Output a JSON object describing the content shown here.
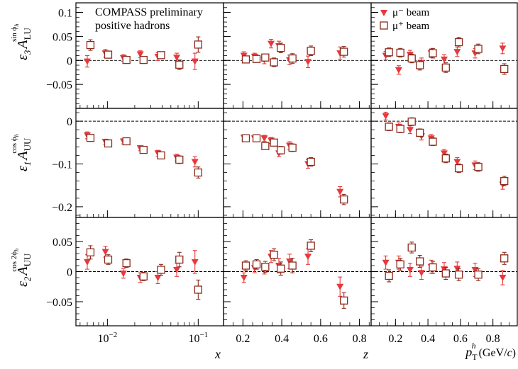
{
  "annotation": {
    "line1": "COMPASS preliminary",
    "line2": "positive hadrons"
  },
  "legend": [
    {
      "label": "μ⁻ beam",
      "color": "#e8383d",
      "marker": "filled-triangle-down"
    },
    {
      "label": "μ⁺ beam",
      "color": "#8b2c1d",
      "marker": "open-square"
    }
  ],
  "row_labels": [
    {
      "symbol": "ε",
      "sub": "3",
      "main": "A",
      "main_sub": "LU",
      "sup": "sin ϕ",
      "sup_sub": "h"
    },
    {
      "symbol": "ε",
      "sub": "1",
      "main": "A",
      "main_sub": "UU",
      "sup": "cos ϕ",
      "sup_sub": "h"
    },
    {
      "symbol": "ε",
      "sub": "2",
      "main": "A",
      "main_sub": "UU",
      "sup": "cos 2ϕ",
      "sup_sub": "h"
    }
  ],
  "column_titles": [
    {
      "text": "x"
    },
    {
      "text": "z"
    },
    {
      "main": "p",
      "sub": "T",
      "sup": "h",
      "unit": " (GeV/",
      "unit_var": "c",
      "unit_end": ")"
    }
  ],
  "chart_data": {
    "type": "scatter",
    "layout": "3x3 panel grid, shared y-axis per row, shared x-axis per column",
    "columns": [
      {
        "variable": "x",
        "scale": "log",
        "xlim": [
          0.0045,
          0.19
        ],
        "ticks": [
          {
            "value": 0.01,
            "base": "10",
            "exp": "−2"
          },
          {
            "value": 0.1,
            "base": "10",
            "exp": "−1"
          }
        ]
      },
      {
        "variable": "z",
        "scale": "linear",
        "xlim": [
          0.1,
          0.86
        ],
        "ticks": [
          {
            "value": 0.2,
            "label": "0.2"
          },
          {
            "value": 0.4,
            "label": "0.4"
          },
          {
            "value": 0.6,
            "label": "0.6"
          },
          {
            "value": 0.8,
            "label": "0.8"
          }
        ]
      },
      {
        "variable": "pT",
        "scale": "linear",
        "xlim": [
          0.05,
          0.95
        ],
        "ticks": [
          {
            "value": 0.2,
            "label": "0.2"
          },
          {
            "value": 0.4,
            "label": "0.4"
          },
          {
            "value": 0.6,
            "label": "0.6"
          },
          {
            "value": 0.8,
            "label": "0.8"
          }
        ]
      }
    ],
    "rows": [
      {
        "ylim": [
          -0.1,
          0.12
        ],
        "ticks": [
          {
            "value": 0.1,
            "label": "0.1"
          },
          {
            "value": 0.05,
            "label": "0.05"
          },
          {
            "value": 0,
            "label": "0"
          },
          {
            "value": -0.05,
            "label": "−0.05"
          }
        ]
      },
      {
        "ylim": [
          -0.225,
          0.03
        ],
        "ticks": [
          {
            "value": 0,
            "label": "0"
          },
          {
            "value": -0.1,
            "label": "−0.1"
          },
          {
            "value": -0.2,
            "label": "−0.2"
          }
        ]
      },
      {
        "ylim": [
          -0.09,
          0.09
        ],
        "ticks": [
          {
            "value": 0.05,
            "label": "0.05"
          },
          {
            "value": 0,
            "label": "0"
          },
          {
            "value": -0.05,
            "label": "−0.05"
          }
        ]
      }
    ],
    "panels": [
      {
        "row": 0,
        "col": 0,
        "series": [
          {
            "name": "μ⁻ beam",
            "x": [
              0.006,
              0.0095,
              0.015,
              0.023,
              0.036,
              0.058,
              0.092
            ],
            "y": [
              -0.002,
              0.015,
              0.005,
              0.013,
              0.008,
              0.006,
              -0.002
            ],
            "err": [
              0.012,
              0.008,
              0.007,
              0.007,
              0.008,
              0.009,
              0.017
            ]
          },
          {
            "name": "μ⁺ beam",
            "x": [
              0.0065,
              0.0102,
              0.0162,
              0.025,
              0.039,
              0.062,
              0.1
            ],
            "y": [
              0.032,
              0.012,
              0.001,
              0.001,
              0.011,
              -0.009,
              0.033
            ],
            "err": [
              0.011,
              0.007,
              0.006,
              0.006,
              0.007,
              0.01,
              0.016
            ]
          }
        ]
      },
      {
        "row": 0,
        "col": 1,
        "series": [
          {
            "name": "μ⁻ beam",
            "x": [
              0.205,
              0.26,
              0.31,
              0.345,
              0.385,
              0.44,
              0.535,
              0.7
            ],
            "y": [
              0.01,
              0.008,
              0.001,
              0.035,
              0.03,
              0.001,
              -0.003,
              0.015
            ],
            "err": [
              0.008,
              0.007,
              0.008,
              0.009,
              0.01,
              0.01,
              0.012,
              0.013
            ]
          },
          {
            "name": "μ⁺ beam",
            "x": [
              0.215,
              0.27,
              0.315,
              0.36,
              0.395,
              0.455,
              0.55,
              0.72
            ],
            "y": [
              0.002,
              0.003,
              0.006,
              -0.004,
              0.026,
              0.004,
              0.02,
              0.018
            ],
            "err": [
              0.007,
              0.006,
              0.007,
              0.009,
              0.01,
              0.01,
              0.01,
              0.011
            ]
          }
        ]
      },
      {
        "row": 0,
        "col": 2,
        "series": [
          {
            "name": "μ⁻ beam",
            "x": [
              0.14,
              0.22,
              0.29,
              0.36,
              0.42,
              0.5,
              0.58,
              0.69,
              0.86
            ],
            "y": [
              0.01,
              -0.02,
              0.012,
              -0.005,
              0.015,
              0.002,
              0.018,
              0.015,
              0.025
            ],
            "err": [
              0.009,
              0.009,
              0.009,
              0.01,
              0.009,
              0.01,
              0.01,
              0.01,
              0.011
            ]
          },
          {
            "name": "μ⁺ beam",
            "x": [
              0.16,
              0.23,
              0.3,
              0.35,
              0.43,
              0.51,
              0.59,
              0.71,
              0.87
            ],
            "y": [
              0.017,
              0.016,
              0.004,
              -0.01,
              0.015,
              -0.015,
              0.038,
              0.024,
              -0.018
            ],
            "err": [
              0.009,
              0.009,
              0.009,
              0.01,
              0.01,
              0.01,
              0.01,
              0.01,
              0.011
            ]
          }
        ]
      },
      {
        "row": 1,
        "col": 0,
        "series": [
          {
            "name": "μ⁻ beam",
            "x": [
              0.006,
              0.0095,
              0.015,
              0.023,
              0.036,
              0.058,
              0.092
            ],
            "y": [
              -0.033,
              -0.048,
              -0.047,
              -0.063,
              -0.075,
              -0.085,
              -0.095
            ],
            "err": [
              0.008,
              0.006,
              0.006,
              0.006,
              0.007,
              0.008,
              0.012
            ]
          },
          {
            "name": "μ⁺ beam",
            "x": [
              0.0065,
              0.0102,
              0.0162,
              0.025,
              0.039,
              0.062,
              0.1
            ],
            "y": [
              -0.039,
              -0.052,
              -0.047,
              -0.067,
              -0.08,
              -0.09,
              -0.12
            ],
            "err": [
              0.008,
              0.006,
              0.006,
              0.006,
              0.007,
              0.009,
              0.013
            ]
          }
        ]
      },
      {
        "row": 1,
        "col": 1,
        "series": [
          {
            "name": "μ⁻ beam",
            "x": [
              0.205,
              0.26,
              0.31,
              0.345,
              0.385,
              0.44,
              0.535,
              0.7
            ],
            "y": [
              -0.038,
              -0.04,
              -0.04,
              -0.045,
              -0.075,
              -0.057,
              -0.1,
              -0.165
            ],
            "err": [
              0.006,
              0.006,
              0.007,
              0.007,
              0.008,
              0.009,
              0.01,
              0.012
            ]
          },
          {
            "name": "μ⁺ beam",
            "x": [
              0.215,
              0.27,
              0.315,
              0.36,
              0.395,
              0.455,
              0.55,
              0.72
            ],
            "y": [
              -0.04,
              -0.04,
              -0.058,
              -0.05,
              -0.068,
              -0.062,
              -0.095,
              -0.183
            ],
            "err": [
              0.006,
              0.006,
              0.008,
              0.008,
              0.009,
              0.009,
              0.01,
              0.012
            ]
          }
        ]
      },
      {
        "row": 1,
        "col": 2,
        "series": [
          {
            "name": "μ⁻ beam",
            "x": [
              0.14,
              0.22,
              0.29,
              0.36,
              0.42,
              0.5,
              0.58,
              0.69,
              0.86
            ],
            "y": [
              0.012,
              -0.013,
              -0.02,
              -0.035,
              -0.04,
              -0.075,
              -0.095,
              -0.103,
              -0.148
            ],
            "err": [
              0.009,
              0.009,
              0.009,
              0.009,
              0.009,
              0.009,
              0.01,
              0.01,
              0.011
            ]
          },
          {
            "name": "μ⁺ beam",
            "x": [
              0.16,
              0.23,
              0.3,
              0.35,
              0.43,
              0.51,
              0.59,
              0.71,
              0.87
            ],
            "y": [
              -0.013,
              -0.018,
              -0.001,
              -0.027,
              -0.048,
              -0.087,
              -0.11,
              -0.107,
              -0.14
            ],
            "err": [
              0.009,
              0.009,
              0.009,
              0.009,
              0.009,
              0.01,
              0.01,
              0.01,
              0.011
            ]
          }
        ]
      },
      {
        "row": 2,
        "col": 0,
        "series": [
          {
            "name": "μ⁻ beam",
            "x": [
              0.006,
              0.0095,
              0.015,
              0.023,
              0.036,
              0.058,
              0.092
            ],
            "y": [
              0.016,
              0.033,
              -0.003,
              -0.01,
              -0.01,
              0.003,
              0.016
            ],
            "err": [
              0.012,
              0.009,
              0.008,
              0.008,
              0.01,
              0.011,
              0.019
            ]
          },
          {
            "name": "μ⁺ beam",
            "x": [
              0.0065,
              0.0102,
              0.0162,
              0.025,
              0.039,
              0.062,
              0.1
            ],
            "y": [
              0.032,
              0.02,
              0.014,
              -0.008,
              0.003,
              0.02,
              -0.03
            ],
            "err": [
              0.011,
              0.008,
              0.007,
              0.007,
              0.009,
              0.012,
              0.016
            ]
          }
        ]
      },
      {
        "row": 2,
        "col": 1,
        "series": [
          {
            "name": "μ⁻ beam",
            "x": [
              0.205,
              0.26,
              0.31,
              0.345,
              0.385,
              0.44,
              0.535,
              0.7
            ],
            "y": [
              -0.01,
              0.006,
              0.005,
              0.025,
              0.01,
              0.017,
              0.025,
              -0.025
            ],
            "err": [
              0.008,
              0.008,
              0.009,
              0.01,
              0.012,
              0.012,
              0.013,
              0.016
            ]
          },
          {
            "name": "μ⁺ beam",
            "x": [
              0.215,
              0.27,
              0.315,
              0.36,
              0.395,
              0.455,
              0.55,
              0.72
            ],
            "y": [
              0.01,
              0.012,
              0.008,
              0.028,
              0.005,
              0.01,
              0.043,
              -0.048
            ],
            "err": [
              0.008,
              0.008,
              0.009,
              0.01,
              0.011,
              0.012,
              0.01,
              0.013
            ]
          }
        ]
      },
      {
        "row": 2,
        "col": 2,
        "series": [
          {
            "name": "μ⁻ beam",
            "x": [
              0.14,
              0.22,
              0.29,
              0.36,
              0.42,
              0.5,
              0.58,
              0.69,
              0.86
            ],
            "y": [
              0.015,
              0.015,
              0.003,
              -0.002,
              0.008,
              0.004,
              0.005,
              0.003,
              -0.01
            ],
            "err": [
              0.011,
              0.011,
              0.011,
              0.011,
              0.011,
              0.011,
              0.011,
              0.011,
              0.012
            ]
          },
          {
            "name": "μ⁺ beam",
            "x": [
              0.16,
              0.23,
              0.3,
              0.35,
              0.43,
              0.51,
              0.59,
              0.71,
              0.87
            ],
            "y": [
              -0.007,
              0.012,
              0.04,
              0.017,
              0.007,
              -0.003,
              -0.005,
              -0.005,
              0.022
            ],
            "err": [
              0.01,
              0.01,
              0.009,
              0.01,
              0.01,
              0.01,
              0.01,
              0.01,
              0.01
            ]
          }
        ]
      }
    ]
  }
}
